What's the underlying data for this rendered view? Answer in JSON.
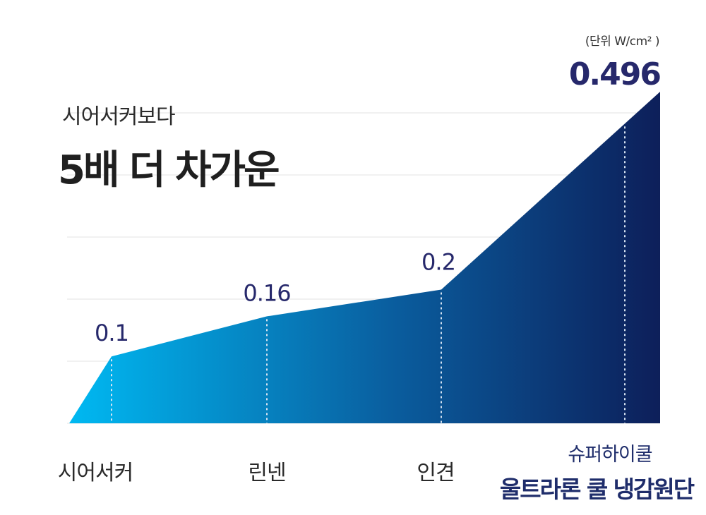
{
  "header": {
    "subtitle": "시어서커보다",
    "title": "5배 더 차가운"
  },
  "unit_label": "(단위 W/cm² )",
  "highlight": {
    "small_label": "슈퍼하이쿨",
    "big_label": "울트라론 쿨 냉감원단"
  },
  "colors": {
    "gradient_start": "#00b9f2",
    "gradient_mid": "#0a5d9e",
    "gradient_end": "#0d1f5a",
    "value_text": "#26286b",
    "grid": "#e3e3e3",
    "dotted": "#d8e4f2"
  },
  "chart_data": {
    "type": "area",
    "categories": [
      "시어서커",
      "린넨",
      "인견",
      "슈퍼하이쿨 울트라론 쿨 냉감원단"
    ],
    "values": [
      0.1,
      0.16,
      0.2,
      0.496
    ],
    "value_labels": [
      "0.1",
      "0.16",
      "0.2",
      "0.496"
    ],
    "ylim": [
      0,
      0.5
    ],
    "grid": true
  }
}
